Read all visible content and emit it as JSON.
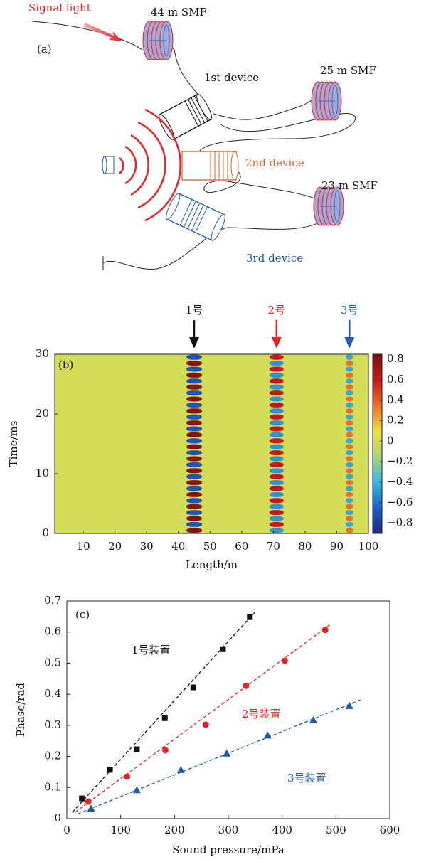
{
  "diagram": {
    "panel_label": "(a)",
    "signal_label": "Signal light",
    "fiber_1": "44 m SMF",
    "fiber_2": "25 m SMF",
    "fiber_3": "23 m SMF",
    "device_1": "1st device",
    "device_2": "2nd device",
    "device_3": "3rd device"
  },
  "chart_data": [
    {
      "type": "heatmap",
      "panel_label": "(b)",
      "x_label": "Length/m",
      "y_label": "Time/ms",
      "xlim": [
        1,
        100
      ],
      "xticks": [
        10,
        20,
        30,
        40,
        50,
        60,
        70,
        80,
        90,
        100
      ],
      "ylim": [
        0,
        30
      ],
      "yticks": [
        0,
        10,
        20,
        30
      ],
      "zlim": [
        -0.9,
        0.85
      ],
      "zticks": [
        0.8,
        0.6,
        0.4,
        0.2,
        0,
        {
          "value": -0.2,
          "label": "−0.2"
        },
        {
          "value": -0.4,
          "label": "−0.4"
        },
        {
          "value": -0.6,
          "label": "−0.6"
        },
        {
          "value": -0.8,
          "label": "−0.8"
        }
      ],
      "colors": [
        "#1c2a80",
        "#1f5fc4",
        "#3ab8e0",
        "#a9d57c",
        "#eee040",
        "#e8702a",
        "#c21a1a",
        "#7a0f0f"
      ],
      "annotations": [
        {
          "text": "1号",
          "x": 45,
          "color": "#111111"
        },
        {
          "text": "2号",
          "x": 71,
          "color": "#e52222"
        },
        {
          "text": "3号",
          "x": 94,
          "color": "#1f5aa8"
        }
      ],
      "x": [
        45,
        71,
        94
      ],
      "y": [
        0.5,
        1.5,
        2.5,
        3.5,
        4.5,
        5.5,
        6.5,
        7.5,
        8.5,
        9.5,
        10.5,
        11.5,
        12.5,
        13.5,
        14.5,
        15.5,
        16.5,
        17.5,
        18.5,
        19.5,
        20.5,
        21.5,
        22.5,
        23.5,
        24.5,
        25.5,
        26.5,
        27.5,
        28.5,
        29.5
      ],
      "z": [
        [
          0.8,
          -0.5,
          0.35
        ],
        [
          -0.7,
          0.6,
          -0.45
        ],
        [
          0.8,
          -0.5,
          0.35
        ],
        [
          -0.7,
          0.6,
          -0.45
        ],
        [
          0.8,
          -0.5,
          0.35
        ],
        [
          -0.7,
          0.6,
          -0.45
        ],
        [
          0.8,
          -0.5,
          0.35
        ],
        [
          -0.7,
          0.6,
          -0.45
        ],
        [
          0.8,
          -0.5,
          0.35
        ],
        [
          -0.7,
          0.6,
          -0.45
        ],
        [
          0.8,
          -0.5,
          0.35
        ],
        [
          -0.7,
          0.6,
          -0.45
        ],
        [
          0.8,
          -0.5,
          0.35
        ],
        [
          -0.7,
          0.6,
          -0.45
        ],
        [
          0.8,
          -0.5,
          0.35
        ],
        [
          -0.7,
          0.6,
          -0.45
        ],
        [
          0.8,
          -0.5,
          0.35
        ],
        [
          -0.7,
          0.6,
          -0.45
        ],
        [
          0.8,
          -0.5,
          0.35
        ],
        [
          -0.7,
          0.6,
          -0.45
        ],
        [
          0.8,
          -0.5,
          0.35
        ],
        [
          -0.7,
          0.6,
          -0.45
        ],
        [
          0.8,
          -0.5,
          0.35
        ],
        [
          -0.7,
          0.6,
          -0.45
        ],
        [
          0.8,
          -0.5,
          0.35
        ],
        [
          -0.7,
          0.6,
          -0.45
        ],
        [
          0.8,
          -0.5,
          0.35
        ],
        [
          -0.7,
          0.6,
          -0.45
        ],
        [
          0.8,
          -0.5,
          0.35
        ],
        [
          -0.7,
          0.6,
          -0.45
        ]
      ]
    },
    {
      "type": "scatter",
      "panel_label": "(c)",
      "x_label": "Sound pressure/mPa",
      "y_label": "Phase/rad",
      "xlim": [
        0,
        600
      ],
      "xticks": [
        0,
        100,
        200,
        300,
        400,
        500,
        600
      ],
      "ylim": [
        0,
        0.7
      ],
      "yticks": [
        0,
        0.1,
        0.2,
        0.3,
        0.4,
        0.5,
        0.6,
        0.7
      ],
      "series": [
        {
          "name": "1号装置",
          "color": "#111111",
          "marker": "square",
          "x": [
            28,
            80,
            130,
            182,
            235,
            290,
            340
          ],
          "values": [
            0.065,
            0.157,
            0.223,
            0.323,
            0.422,
            0.545,
            0.648
          ],
          "fit": {
            "x": [
              10,
              350
            ],
            "values": [
              0.02,
              0.665
            ]
          }
        },
        {
          "name": "2号装置",
          "color": "#e52222",
          "marker": "circle",
          "x": [
            40,
            112,
            183,
            258,
            333,
            405,
            480
          ],
          "values": [
            0.055,
            0.135,
            0.22,
            0.302,
            0.427,
            0.508,
            0.607
          ],
          "fit": {
            "x": [
              15,
              490
            ],
            "values": [
              0.02,
              0.625
            ]
          }
        },
        {
          "name": "3号装置",
          "color": "#1f5aa8",
          "marker": "triangle",
          "x": [
            45,
            130,
            212,
            297,
            373,
            458,
            525
          ],
          "values": [
            0.033,
            0.092,
            0.157,
            0.21,
            0.268,
            0.317,
            0.363
          ],
          "fit": {
            "x": [
              20,
              550
            ],
            "values": [
              0.015,
              0.385
            ]
          }
        }
      ]
    }
  ]
}
